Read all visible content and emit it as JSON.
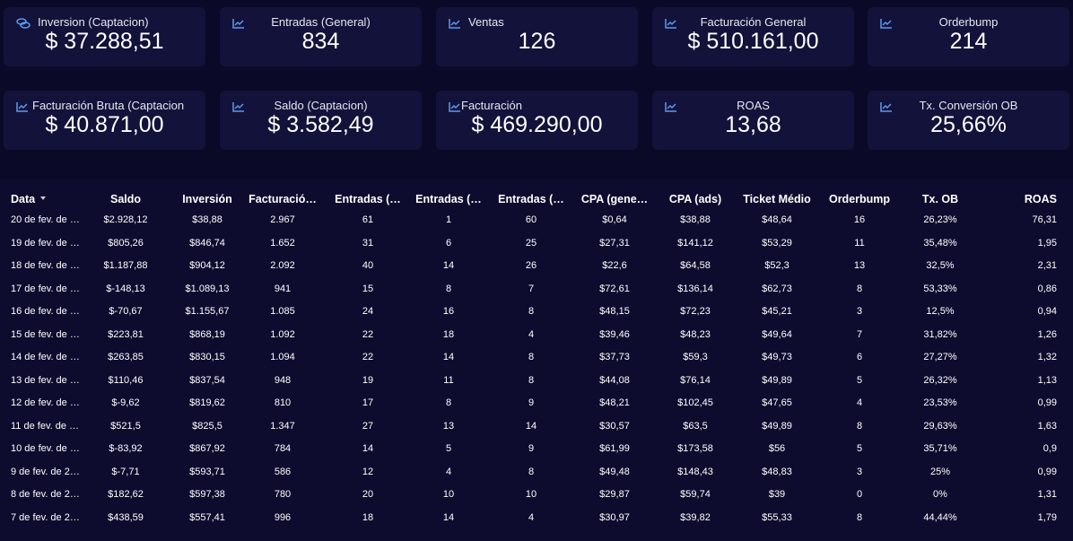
{
  "cards": [
    {
      "label": "Inversion (Captacion)",
      "value": "$ 37.288,51"
    },
    {
      "label": "Entradas (General)",
      "value": "834"
    },
    {
      "label": "Ventas",
      "value": "126"
    },
    {
      "label": "Facturación General",
      "value": "$ 510.161,00"
    },
    {
      "label": "Orderbump",
      "value": "214"
    },
    {
      "label": "Facturación Bruta (Captacion",
      "value": "$ 40.871,00"
    },
    {
      "label": "Saldo (Captacion)",
      "value": "$ 3.582,49"
    },
    {
      "label": "Facturación",
      "value": "$ 469.290,00"
    },
    {
      "label": "ROAS",
      "value": "13,68"
    },
    {
      "label": "Tx. Conversión OB",
      "value": "25,66%"
    }
  ],
  "table": {
    "columns": [
      "Data",
      "Saldo",
      "Inversión",
      "Facturació…",
      "Entradas (…",
      "Entradas (…",
      "Entradas (…",
      "CPA (gene…",
      "CPA (ads)",
      "Ticket Médio",
      "Orderbump",
      "Tx. OB",
      "ROAS"
    ],
    "rows": [
      [
        "20 de fev. de …",
        "$2.928,12",
        "$38,88",
        "2.967",
        "61",
        "1",
        "60",
        "$0,64",
        "$38,88",
        "$48,64",
        "16",
        "26,23%",
        "76,31"
      ],
      [
        "19 de fev. de …",
        "$805,26",
        "$846,74",
        "1.652",
        "31",
        "6",
        "25",
        "$27,31",
        "$141,12",
        "$53,29",
        "11",
        "35,48%",
        "1,95"
      ],
      [
        "18 de fev. de …",
        "$1.187,88",
        "$904,12",
        "2.092",
        "40",
        "14",
        "26",
        "$22,6",
        "$64,58",
        "$52,3",
        "13",
        "32,5%",
        "2,31"
      ],
      [
        "17 de fev. de …",
        "$-148,13",
        "$1.089,13",
        "941",
        "15",
        "8",
        "7",
        "$72,61",
        "$136,14",
        "$62,73",
        "8",
        "53,33%",
        "0,86"
      ],
      [
        "16 de fev. de …",
        "$-70,67",
        "$1.155,67",
        "1.085",
        "24",
        "16",
        "8",
        "$48,15",
        "$72,23",
        "$45,21",
        "3",
        "12,5%",
        "0,94"
      ],
      [
        "15 de fev. de …",
        "$223,81",
        "$868,19",
        "1.092",
        "22",
        "18",
        "4",
        "$39,46",
        "$48,23",
        "$49,64",
        "7",
        "31,82%",
        "1,26"
      ],
      [
        "14 de fev. de …",
        "$263,85",
        "$830,15",
        "1.094",
        "22",
        "14",
        "8",
        "$37,73",
        "$59,3",
        "$49,73",
        "6",
        "27,27%",
        "1,32"
      ],
      [
        "13 de fev. de …",
        "$110,46",
        "$837,54",
        "948",
        "19",
        "11",
        "8",
        "$44,08",
        "$76,14",
        "$49,89",
        "5",
        "26,32%",
        "1,13"
      ],
      [
        "12 de fev. de …",
        "$-9,62",
        "$819,62",
        "810",
        "17",
        "8",
        "9",
        "$48,21",
        "$102,45",
        "$47,65",
        "4",
        "23,53%",
        "0,99"
      ],
      [
        "11 de fev. de …",
        "$521,5",
        "$825,5",
        "1.347",
        "27",
        "13",
        "14",
        "$30,57",
        "$63,5",
        "$49,89",
        "8",
        "29,63%",
        "1,63"
      ],
      [
        "10 de fev. de …",
        "$-83,92",
        "$867,92",
        "784",
        "14",
        "5",
        "9",
        "$61,99",
        "$173,58",
        "$56",
        "5",
        "35,71%",
        "0,9"
      ],
      [
        "9 de fev. de 2…",
        "$-7,71",
        "$593,71",
        "586",
        "12",
        "4",
        "8",
        "$49,48",
        "$148,43",
        "$48,83",
        "3",
        "25%",
        "0,99"
      ],
      [
        "8 de fev. de 2…",
        "$182,62",
        "$597,38",
        "780",
        "20",
        "10",
        "10",
        "$29,87",
        "$59,74",
        "$39",
        "0",
        "0%",
        "1,31"
      ],
      [
        "7 de fev. de 2…",
        "$438,59",
        "$557,41",
        "996",
        "18",
        "14",
        "4",
        "$30,97",
        "$39,82",
        "$55,33",
        "8",
        "44,44%",
        "1,79"
      ]
    ]
  }
}
